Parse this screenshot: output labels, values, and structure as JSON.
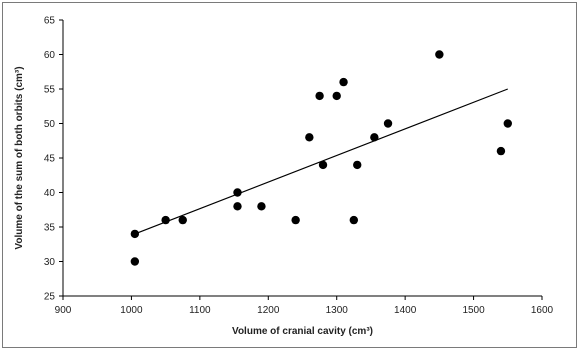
{
  "chart_data": {
    "type": "scatter",
    "xlabel": "Volume of cranial cavity (cm³)",
    "ylabel": "Volume of the sum of both orbits (cm³)",
    "xlim": [
      900,
      1600
    ],
    "ylim": [
      25,
      65
    ],
    "x_ticks": [
      "900",
      "1000",
      "1100",
      "1200",
      "1300",
      "1400",
      "1500",
      "1600"
    ],
    "y_ticks": [
      "25",
      "30",
      "35",
      "40",
      "45",
      "50",
      "55",
      "60",
      "65"
    ],
    "x_tick_values": [
      900,
      1000,
      1100,
      1200,
      1300,
      1400,
      1500,
      1600
    ],
    "y_tick_values": [
      25,
      30,
      35,
      40,
      45,
      50,
      55,
      60,
      65
    ],
    "grid": false,
    "legend": "none",
    "point_color": "#000000",
    "trendline": {
      "x": [
        1005,
        1550
      ],
      "y": [
        34,
        55
      ]
    },
    "points": [
      {
        "x": 1005,
        "y": 34
      },
      {
        "x": 1005,
        "y": 30
      },
      {
        "x": 1050,
        "y": 36
      },
      {
        "x": 1075,
        "y": 36
      },
      {
        "x": 1155,
        "y": 40
      },
      {
        "x": 1155,
        "y": 38
      },
      {
        "x": 1190,
        "y": 38
      },
      {
        "x": 1240,
        "y": 36
      },
      {
        "x": 1260,
        "y": 48
      },
      {
        "x": 1275,
        "y": 54
      },
      {
        "x": 1280,
        "y": 44
      },
      {
        "x": 1300,
        "y": 54
      },
      {
        "x": 1310,
        "y": 56
      },
      {
        "x": 1325,
        "y": 36
      },
      {
        "x": 1330,
        "y": 44
      },
      {
        "x": 1355,
        "y": 48
      },
      {
        "x": 1375,
        "y": 50
      },
      {
        "x": 1450,
        "y": 60
      },
      {
        "x": 1540,
        "y": 46
      },
      {
        "x": 1550,
        "y": 50
      }
    ]
  }
}
